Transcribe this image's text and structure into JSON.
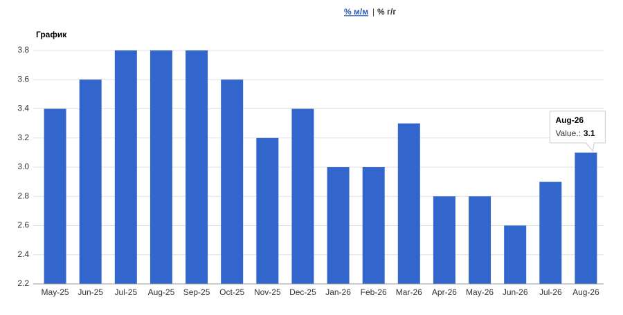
{
  "toggle": {
    "options": [
      "% м/м",
      "% г/г"
    ],
    "separator": "|"
  },
  "chart_data": {
    "type": "bar",
    "title": "График",
    "categories": [
      "May-25",
      "Jun-25",
      "Jul-25",
      "Aug-25",
      "Sep-25",
      "Oct-25",
      "Nov-25",
      "Dec-25",
      "Jan-26",
      "Feb-26",
      "Mar-26",
      "Apr-26",
      "May-26",
      "Jun-26",
      "Jul-26",
      "Aug-26"
    ],
    "values": [
      3.4,
      3.6,
      3.8,
      3.8,
      3.8,
      3.6,
      3.2,
      3.4,
      3.0,
      3.0,
      3.3,
      2.8,
      2.8,
      2.6,
      2.9,
      3.1
    ],
    "color": "#3366cc",
    "ylim": [
      2.2,
      3.8
    ],
    "yticks": [
      2.2,
      2.4,
      2.6,
      2.8,
      {
        "value": 3,
        "label": "3.0"
      },
      3.2,
      3.4,
      3.6,
      3.8
    ],
    "grid": true,
    "tooltip": {
      "label": "Value.:"
    }
  }
}
